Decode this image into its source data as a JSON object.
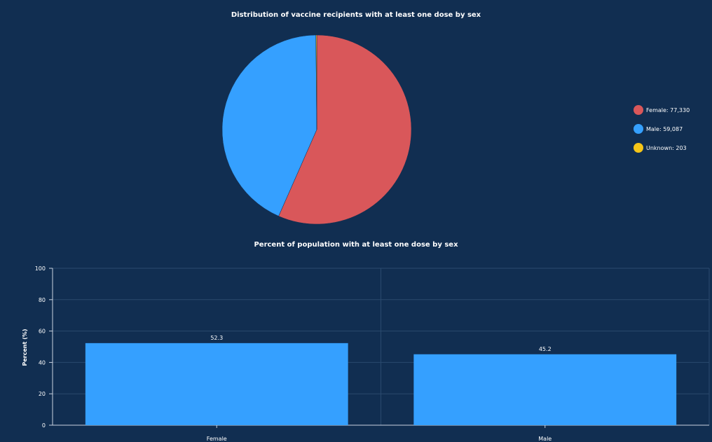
{
  "colors": {
    "background": "#112e51",
    "female": "#d9575a",
    "male": "#35a0ff",
    "unknown": "#f5c518",
    "bar": "#35a0ff"
  },
  "chart_data": [
    {
      "type": "pie",
      "title": "Distribution of vaccine recipients with at least one dose by sex",
      "slices": [
        {
          "name": "Female",
          "value": 77330,
          "value_label": "77,330",
          "color": "#d9575a"
        },
        {
          "name": "Male",
          "value": 59087,
          "value_label": "59,087",
          "color": "#35a0ff"
        },
        {
          "name": "Unknown",
          "value": 203,
          "value_label": "203",
          "color": "#f5c518"
        }
      ],
      "legend_position": "right"
    },
    {
      "type": "bar",
      "title": "Percent of population with at least one dose by sex",
      "categories": [
        "Female",
        "Male"
      ],
      "values": [
        52.3,
        45.2
      ],
      "value_labels": [
        "52.3",
        "45.2"
      ],
      "ylabel": "Percent (%)",
      "xlabel": "",
      "ylim": [
        0,
        100
      ],
      "yticks": [
        0,
        20,
        40,
        60,
        80,
        100
      ],
      "grid": true
    }
  ]
}
